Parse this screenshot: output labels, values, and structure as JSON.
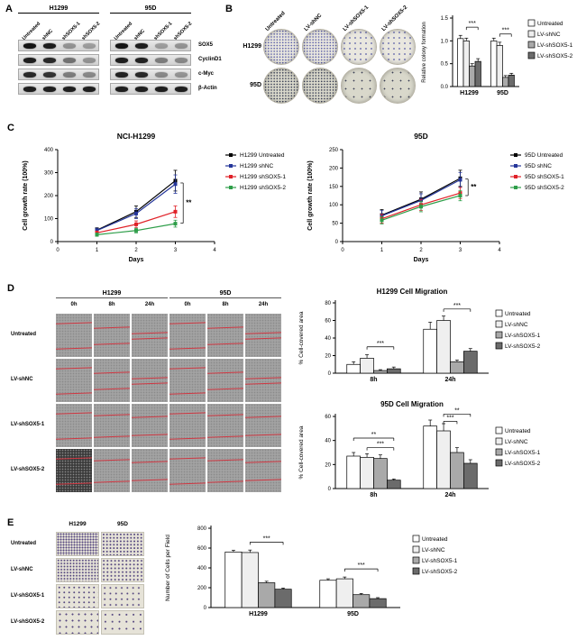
{
  "panelA": {
    "label": "A",
    "groups": [
      {
        "cell_line": "H1299",
        "lanes": [
          "Untreated",
          "shNC",
          "shSOX5-1",
          "shSOX5-2"
        ],
        "rows": [
          {
            "protein": "SOX5",
            "bands": [
              0.95,
              0.9,
              0.35,
              0.3
            ]
          },
          {
            "protein": "CyclinD1",
            "bands": [
              0.9,
              0.85,
              0.5,
              0.35
            ]
          },
          {
            "protein": "c-Myc",
            "bands": [
              0.85,
              0.8,
              0.45,
              0.4
            ]
          },
          {
            "protein": "β-Actin",
            "bands": [
              0.9,
              0.9,
              0.9,
              0.9
            ]
          }
        ]
      },
      {
        "cell_line": "95D",
        "lanes": [
          "Untreated",
          "shNC",
          "shSOX5-1",
          "shSOX5-2"
        ],
        "rows": [
          {
            "protein": "SOX5",
            "bands": [
              0.95,
              0.9,
              0.3,
              0.35
            ]
          },
          {
            "protein": "CyclinD1",
            "bands": [
              0.9,
              0.88,
              0.45,
              0.4
            ]
          },
          {
            "protein": "c-Myc",
            "bands": [
              0.88,
              0.85,
              0.4,
              0.35
            ]
          },
          {
            "protein": "β-Actin",
            "bands": [
              0.9,
              0.9,
              0.9,
              0.9
            ]
          }
        ]
      }
    ],
    "protein_labels": [
      "SOX5",
      "CyclinD1",
      "c-Myc",
      "β-Actin"
    ]
  },
  "panelB": {
    "label": "B",
    "col_labels": [
      "Untreated",
      "LV-shNC",
      "LV-shSOX5-1",
      "LV-shSOX5-2"
    ],
    "rows": [
      {
        "cell_line": "H1299",
        "densities": [
          0.9,
          0.85,
          0.3,
          0.35
        ],
        "dish": "#e9e7df",
        "dot": "#5b5fa8"
      },
      {
        "cell_line": "95D",
        "densities": [
          0.8,
          0.75,
          0.1,
          0.15
        ],
        "dish": "#d9d8cb",
        "dot": "#3a3f55"
      }
    ]
  },
  "panelC": {
    "label": "C"
  },
  "panelD": {
    "label": "D",
    "group_headers": [
      "H1299",
      "95D"
    ],
    "time_labels": [
      "0h",
      "8h",
      "24h"
    ],
    "row_labels": [
      "Untreated",
      "LV-shNC",
      "LV-shSOX5-1",
      "LV-shSOX5-2"
    ]
  },
  "panelE": {
    "label": "E",
    "col_headers": [
      "H1299",
      "95D"
    ],
    "row_labels": [
      "Untreated",
      "LV-shNC",
      "LV-shSOX5-1",
      "LV-shSOX5-2"
    ]
  },
  "chart_data": [
    {
      "id": "colony-bar",
      "type": "bar",
      "title": "",
      "ylabel": "Relative colony formation",
      "ylim": [
        0,
        1.5
      ],
      "yticks": [
        0,
        0.5,
        1.0,
        1.5
      ],
      "ytick_labels": [
        "0.0",
        "0.5",
        "1.0",
        "1.5"
      ],
      "categories": [
        "H1299",
        "95D"
      ],
      "series": [
        {
          "name": "Untreated",
          "fill": "#ffffff",
          "values": [
            1.05,
            1.0
          ],
          "errors": [
            0.07,
            0.06
          ]
        },
        {
          "name": "LV-shNC",
          "fill": "#efefef",
          "values": [
            1.0,
            0.9
          ],
          "errors": [
            0.06,
            0.07
          ]
        },
        {
          "name": "LV-shSOX5-1",
          "fill": "#a9a9a9",
          "values": [
            0.45,
            0.2
          ],
          "errors": [
            0.05,
            0.04
          ]
        },
        {
          "name": "LV-shSOX5-2",
          "fill": "#6b6b6b",
          "values": [
            0.55,
            0.25
          ],
          "errors": [
            0.06,
            0.04
          ]
        }
      ],
      "sig": [
        {
          "cat": 0,
          "s1": 1,
          "s2": 3,
          "v": 1.3,
          "text": "***"
        },
        {
          "cat": 1,
          "s1": 1,
          "s2": 3,
          "v": 1.15,
          "text": "***"
        }
      ],
      "legend_position": "right"
    },
    {
      "id": "growth-h1299",
      "type": "line",
      "title": "NCI-H1299",
      "xlabel": "Days",
      "ylabel": "Cell growth rate (100%)",
      "xlim": [
        0,
        4
      ],
      "ylim": [
        0,
        400
      ],
      "xticks": [
        0,
        1,
        2,
        3,
        4
      ],
      "yticks": [
        0,
        100,
        200,
        300,
        400
      ],
      "x": [
        1,
        2,
        3
      ],
      "series": [
        {
          "name": "H1299 Untreated",
          "color": "#000000",
          "values": [
            50,
            130,
            265
          ],
          "errors": [
            10,
            25,
            45
          ]
        },
        {
          "name": "H1299 shNC",
          "color": "#25369a",
          "values": [
            48,
            122,
            250
          ],
          "errors": [
            10,
            22,
            40
          ]
        },
        {
          "name": "H1299 shSOX5-1",
          "color": "#e02128",
          "values": [
            38,
            75,
            130
          ],
          "errors": [
            8,
            15,
            25
          ]
        },
        {
          "name": "H1299 shSOX5-2",
          "color": "#2e9e49",
          "values": [
            30,
            48,
            78
          ],
          "errors": [
            7,
            10,
            15
          ]
        }
      ],
      "vsig": [
        {
          "x": 3.2,
          "v1": 80,
          "v2": 255,
          "text": "**"
        }
      ],
      "legend_position": "right"
    },
    {
      "id": "growth-95d",
      "type": "line",
      "title": "95D",
      "xlabel": "Days",
      "ylabel": "Cell growth rate (100%)",
      "xlim": [
        0,
        4
      ],
      "ylim": [
        0,
        250
      ],
      "xticks": [
        0,
        1,
        2,
        3,
        4
      ],
      "yticks": [
        0,
        50,
        100,
        150,
        200,
        250
      ],
      "x": [
        1,
        2,
        3
      ],
      "series": [
        {
          "name": "95D Untreated",
          "color": "#000000",
          "values": [
            72,
            115,
            172
          ],
          "errors": [
            15,
            20,
            22
          ]
        },
        {
          "name": "95D shNC",
          "color": "#25369a",
          "values": [
            70,
            112,
            168
          ],
          "errors": [
            14,
            18,
            20
          ]
        },
        {
          "name": "95D shSOX5-1",
          "color": "#e02128",
          "values": [
            62,
            100,
            132
          ],
          "errors": [
            12,
            15,
            15
          ]
        },
        {
          "name": "95D shSOX5-2",
          "color": "#2e9e49",
          "values": [
            58,
            95,
            125
          ],
          "errors": [
            10,
            14,
            14
          ]
        }
      ],
      "vsig": [
        {
          "x": 3.2,
          "v1": 125,
          "v2": 170,
          "text": "**"
        }
      ],
      "legend_position": "right"
    },
    {
      "id": "mig-h1299",
      "type": "bar",
      "title": "H1299 Cell Migration",
      "ylabel": "% Cell-covered area",
      "ylim": [
        0,
        80
      ],
      "yticks": [
        0,
        20,
        40,
        60,
        80
      ],
      "categories": [
        "8h",
        "24h"
      ],
      "series": [
        {
          "name": "Untreated",
          "fill": "#ffffff",
          "values": [
            10,
            50
          ],
          "errors": [
            3,
            8
          ]
        },
        {
          "name": "LV-shNC",
          "fill": "#efefef",
          "values": [
            17,
            60
          ],
          "errors": [
            4,
            5
          ]
        },
        {
          "name": "LV-shSOX5-1",
          "fill": "#a9a9a9",
          "values": [
            3,
            13
          ],
          "errors": [
            1,
            2
          ]
        },
        {
          "name": "LV-shSOX5-2",
          "fill": "#6b6b6b",
          "values": [
            5,
            25
          ],
          "errors": [
            2,
            3
          ]
        }
      ],
      "sig": [
        {
          "cat": 0,
          "s1": 1,
          "s2": 3,
          "v": 30,
          "text": "***"
        },
        {
          "cat": 1,
          "s1": 1,
          "s2": 3,
          "v": 73,
          "text": "***"
        }
      ],
      "legend_position": "right"
    },
    {
      "id": "mig-95d",
      "type": "bar",
      "title": "95D Cell Migration",
      "ylabel": "% Cell-covered area",
      "ylim": [
        0,
        60
      ],
      "yticks": [
        0,
        20,
        40,
        60
      ],
      "categories": [
        "8h",
        "24h"
      ],
      "series": [
        {
          "name": "Untreated",
          "fill": "#ffffff",
          "values": [
            27,
            52
          ],
          "errors": [
            3,
            5
          ]
        },
        {
          "name": "LV-shNC",
          "fill": "#efefef",
          "values": [
            26,
            48
          ],
          "errors": [
            3,
            6
          ]
        },
        {
          "name": "LV-shSOX5-1",
          "fill": "#a9a9a9",
          "values": [
            25,
            30
          ],
          "errors": [
            3,
            4
          ]
        },
        {
          "name": "LV-shSOX5-2",
          "fill": "#6b6b6b",
          "values": [
            7,
            21
          ],
          "errors": [
            1,
            3
          ]
        }
      ],
      "sig": [
        {
          "cat": 0,
          "s1": 0,
          "s2": 3,
          "v": 42,
          "text": "**"
        },
        {
          "cat": 0,
          "s1": 1,
          "s2": 3,
          "v": 34,
          "text": "***"
        },
        {
          "cat": 1,
          "s1": 1,
          "s2": 3,
          "v": 62,
          "text": "**"
        },
        {
          "cat": 1,
          "s1": 1,
          "s2": 2,
          "v": 56,
          "text": "***"
        }
      ],
      "legend_position": "right"
    },
    {
      "id": "invasion",
      "type": "bar",
      "title": "",
      "ylabel": "Number of Cells per Field",
      "ylim": [
        0,
        800
      ],
      "yticks": [
        0,
        200,
        400,
        600,
        800
      ],
      "categories": [
        "H1299",
        "95D"
      ],
      "series": [
        {
          "name": "Untreated",
          "fill": "#ffffff",
          "values": [
            560,
            275
          ],
          "errors": [
            18,
            15
          ]
        },
        {
          "name": "LV-shNC",
          "fill": "#efefef",
          "values": [
            555,
            290
          ],
          "errors": [
            25,
            18
          ]
        },
        {
          "name": "LV-shSOX5-1",
          "fill": "#a9a9a9",
          "values": [
            250,
            130
          ],
          "errors": [
            15,
            12
          ]
        },
        {
          "name": "LV-shSOX5-2",
          "fill": "#6b6b6b",
          "values": [
            185,
            90
          ],
          "errors": [
            12,
            10
          ]
        }
      ],
      "sig": [
        {
          "cat": 0,
          "s1": 1,
          "s2": 3,
          "v": 660,
          "text": "***"
        },
        {
          "cat": 1,
          "s1": 1,
          "s2": 3,
          "v": 390,
          "text": "***"
        }
      ],
      "legend_position": "right"
    }
  ]
}
